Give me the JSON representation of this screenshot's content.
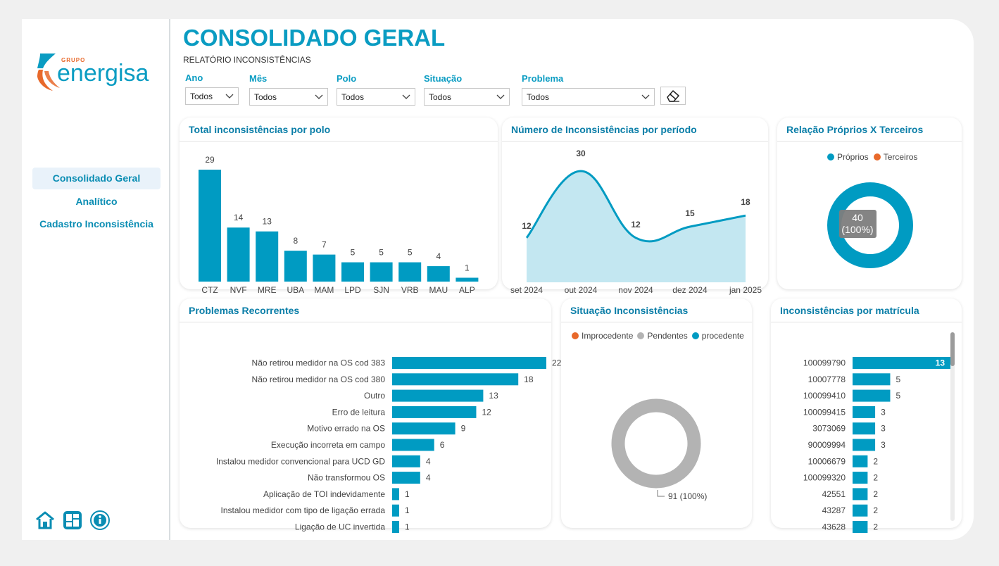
{
  "brand": {
    "grupo": "GRUPO",
    "name": "energisa"
  },
  "nav": [
    {
      "label": "Consolidado Geral",
      "active": true
    },
    {
      "label": "Analítico",
      "active": false
    },
    {
      "label": "Cadastro Inconsistência",
      "active": false
    }
  ],
  "header": {
    "title": "CONSOLIDADO GERAL",
    "subtitle": "RELATÓRIO INCONSISTÊNCIAS"
  },
  "filters": [
    {
      "label": "Ano",
      "value": "Todos"
    },
    {
      "label": "Mês",
      "value": "Todos"
    },
    {
      "label": "Polo",
      "value": "Todos"
    },
    {
      "label": "Situação",
      "value": "Todos"
    },
    {
      "label": "Problema",
      "value": "Todos"
    }
  ],
  "colors": {
    "accent": "#009bc2",
    "orange": "#e8692b",
    "grey": "#b3b3b3",
    "area": "#c3e7f1"
  },
  "cards": {
    "polo": "Total inconsistências por polo",
    "periodo": "Número de Inconsistências por período",
    "relacao": "Relação Próprios X Terceiros",
    "problemas": "Problemas Recorrentes",
    "situacao": "Situação Inconsistências",
    "matricula": "Inconsistências por matrícula"
  },
  "chart_data": [
    {
      "id": "polo",
      "type": "bar",
      "categories": [
        "CTZ",
        "NVF",
        "MRE",
        "UBA",
        "MAM",
        "LPD",
        "SJN",
        "VRB",
        "MAU",
        "ALP"
      ],
      "values": [
        29,
        14,
        13,
        8,
        7,
        5,
        5,
        5,
        4,
        1
      ]
    },
    {
      "id": "periodo",
      "type": "area",
      "categories": [
        "set 2024",
        "out 2024",
        "nov 2024",
        "dez 2024",
        "jan 2025"
      ],
      "values": [
        12,
        30,
        12,
        15,
        18
      ]
    },
    {
      "id": "relacao",
      "type": "pie",
      "legend": [
        "Próprios",
        "Terceiros"
      ],
      "slices": [
        {
          "label": "Próprios",
          "value": 40,
          "pct": "100%"
        },
        {
          "label": "Terceiros",
          "value": 0,
          "pct": "0%"
        }
      ],
      "center_label": [
        "40",
        "(100%)"
      ]
    },
    {
      "id": "problemas",
      "type": "bar",
      "orientation": "horizontal",
      "categories": [
        "Não retirou medidor na OS cod 383",
        "Não retirou medidor na OS cod 380",
        "Outro",
        "Erro de leitura",
        "Motivo errado na OS",
        "Execução incorreta em campo",
        "Instalou medidor convencional para UCD GD",
        "Não transformou OS",
        "Aplicação de TOI indevidamente",
        "Instalou medidor com tipo de ligação errada",
        "Ligação de UC invertida"
      ],
      "values": [
        22,
        18,
        13,
        12,
        9,
        6,
        4,
        4,
        1,
        1,
        1
      ]
    },
    {
      "id": "situacao",
      "type": "pie",
      "legend": [
        "Improcedente",
        "Pendentes",
        "procedente"
      ],
      "slices": [
        {
          "label": "Improcedente",
          "value": 0
        },
        {
          "label": "Pendentes",
          "value": 91
        },
        {
          "label": "procedente",
          "value": 0
        }
      ],
      "data_label": "91 (100%)"
    },
    {
      "id": "matricula",
      "type": "bar",
      "orientation": "horizontal",
      "categories": [
        "100099790",
        "10007778",
        "100099410",
        "100099415",
        "3073069",
        "90009994",
        "10006679",
        "100099320",
        "42551",
        "43287",
        "43628"
      ],
      "values": [
        13,
        5,
        5,
        3,
        3,
        3,
        2,
        2,
        2,
        2,
        2
      ]
    }
  ]
}
